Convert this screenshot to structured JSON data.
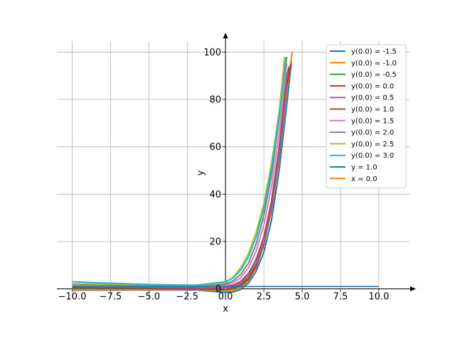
{
  "chart_data": {
    "type": "line",
    "title": "",
    "xlabel": "x",
    "ylabel": "y",
    "xlim": [
      -11,
      12
    ],
    "ylim": [
      -4,
      107
    ],
    "grid": true,
    "legend_position": "top-right",
    "x_ticks": [
      -10.0,
      -7.5,
      -5.0,
      -2.5,
      0.0,
      2.5,
      5.0,
      7.5,
      10.0
    ],
    "x_tick_labels": [
      "−10.0",
      "−7.5",
      "−5.0",
      "−2.5",
      "0.0",
      "2.5",
      "5.0",
      "7.5",
      "10.0"
    ],
    "y_ticks": [
      0,
      20,
      40,
      60,
      80,
      100
    ],
    "y_tick_labels": [
      "0",
      "20",
      "40",
      "60",
      "80",
      "100"
    ],
    "series": [
      {
        "name": "y(0.0) = -1.5",
        "color": "#1f77b4",
        "points": [
          [
            -10,
            -0.5
          ],
          [
            -5,
            -0.49
          ],
          [
            -2,
            -0.45
          ],
          [
            0,
            -1.5
          ],
          [
            0.5,
            -1.3
          ],
          [
            1,
            -0.2
          ],
          [
            1.5,
            2.5
          ],
          [
            2,
            7.5
          ],
          [
            2.5,
            15.5
          ],
          [
            3,
            29
          ],
          [
            3.5,
            50
          ],
          [
            4,
            78
          ],
          [
            4.3,
            96
          ]
        ]
      },
      {
        "name": "y(0.0) = -1.0",
        "color": "#ff7f0e",
        "points": [
          [
            -10,
            -0.3
          ],
          [
            -5,
            -0.29
          ],
          [
            -2,
            -0.2
          ],
          [
            0,
            -1.0
          ],
          [
            0.5,
            -0.7
          ],
          [
            1,
            0.5
          ],
          [
            1.5,
            3.5
          ],
          [
            2,
            9
          ],
          [
            2.5,
            18.5
          ],
          [
            3,
            33
          ],
          [
            3.5,
            55
          ],
          [
            4,
            84
          ],
          [
            4.35,
            100
          ]
        ]
      },
      {
        "name": "y(0.0) = -0.5",
        "color": "#2ca02c",
        "points": [
          [
            -10,
            0.2
          ],
          [
            -5,
            0.1
          ],
          [
            -2,
            -0.1
          ],
          [
            0,
            -0.5
          ],
          [
            0.5,
            0.0
          ],
          [
            1,
            1.2
          ],
          [
            1.5,
            4
          ],
          [
            2,
            9.5
          ],
          [
            2.5,
            19
          ],
          [
            3,
            34
          ],
          [
            3.5,
            56
          ],
          [
            4,
            86
          ]
        ]
      },
      {
        "name": "y(0.0) = 0.0",
        "color": "#d62728",
        "points": [
          [
            -10,
            0.5
          ],
          [
            -5,
            0.4
          ],
          [
            -2,
            0.1
          ],
          [
            0,
            0.0
          ],
          [
            0.5,
            0.5
          ],
          [
            1,
            1.8
          ],
          [
            1.5,
            4.5
          ],
          [
            2,
            10
          ],
          [
            2.5,
            19
          ],
          [
            3,
            34
          ],
          [
            3.5,
            56
          ],
          [
            4,
            86
          ],
          [
            4.25,
            95
          ]
        ]
      },
      {
        "name": "y(0.0) = 0.5",
        "color": "#9467bd",
        "points": [
          [
            -10,
            1.0
          ],
          [
            -5,
            0.8
          ],
          [
            -2,
            0.5
          ],
          [
            0,
            0.5
          ],
          [
            0.5,
            1.0
          ],
          [
            1,
            2.5
          ],
          [
            1.5,
            5.5
          ],
          [
            2,
            11
          ],
          [
            2.5,
            20
          ],
          [
            3,
            35
          ],
          [
            3.5,
            57
          ],
          [
            4,
            87
          ]
        ]
      },
      {
        "name": "y(0.0) = 1.0",
        "color": "#8c564b",
        "points": [
          [
            -10,
            1.3
          ],
          [
            -5,
            1.1
          ],
          [
            -2,
            0.9
          ],
          [
            0,
            1.0
          ],
          [
            0.5,
            1.6
          ],
          [
            1,
            3.2
          ],
          [
            1.5,
            6.5
          ],
          [
            2,
            12.5
          ],
          [
            2.5,
            22
          ],
          [
            3,
            37
          ],
          [
            3.5,
            60
          ],
          [
            4,
            90
          ],
          [
            4.15,
            94
          ]
        ]
      },
      {
        "name": "y(0.0) = 1.5",
        "color": "#e377c2",
        "points": [
          [
            -10,
            1.6
          ],
          [
            -5,
            1.4
          ],
          [
            -2,
            1.2
          ],
          [
            0,
            1.5
          ],
          [
            0.5,
            2.5
          ],
          [
            1,
            4.8
          ],
          [
            1.5,
            9
          ],
          [
            2,
            16
          ],
          [
            2.5,
            27
          ],
          [
            3,
            43
          ],
          [
            3.5,
            66
          ],
          [
            4,
            95
          ]
        ]
      },
      {
        "name": "y(0.0) = 2.0",
        "color": "#7f7f7f",
        "points": [
          [
            -10,
            1.9
          ],
          [
            -5,
            1.6
          ],
          [
            -2,
            1.4
          ],
          [
            0,
            2.0
          ],
          [
            0.5,
            3.4
          ],
          [
            1,
            6.2
          ],
          [
            1.5,
            11
          ],
          [
            2,
            19
          ],
          [
            2.5,
            31
          ],
          [
            3,
            48
          ],
          [
            3.5,
            72
          ],
          [
            3.95,
            98
          ]
        ]
      },
      {
        "name": "y(0.0) = 2.5",
        "color": "#bcbd22",
        "points": [
          [
            -10,
            2.2
          ],
          [
            -5,
            1.8
          ],
          [
            -2,
            1.6
          ],
          [
            0,
            2.5
          ],
          [
            0.5,
            5
          ],
          [
            1,
            9
          ],
          [
            1.5,
            15
          ],
          [
            2,
            24
          ],
          [
            2.5,
            36
          ],
          [
            3,
            53
          ],
          [
            3.5,
            75
          ],
          [
            3.85,
            98
          ]
        ]
      },
      {
        "name": "y(0.0) = 3.0",
        "color": "#17becf",
        "points": [
          [
            -10,
            3.0
          ],
          [
            -7.5,
            2.4
          ],
          [
            -5,
            1.9
          ],
          [
            -2,
            1.5
          ],
          [
            0,
            3.0
          ],
          [
            0.5,
            4.6
          ],
          [
            1,
            8
          ],
          [
            1.5,
            13.5
          ],
          [
            2,
            22
          ],
          [
            2.5,
            34
          ],
          [
            3,
            51
          ],
          [
            3.5,
            73
          ],
          [
            4,
            98
          ]
        ]
      },
      {
        "name": "y = 1.0",
        "color": "#1f77b4",
        "points": [
          [
            -10,
            1.0
          ],
          [
            10,
            1.0
          ]
        ]
      },
      {
        "name": "x = 0.0",
        "color": "#ff7f0e",
        "points": [
          [
            0,
            -0.5
          ],
          [
            0,
            0.5
          ]
        ]
      }
    ]
  }
}
